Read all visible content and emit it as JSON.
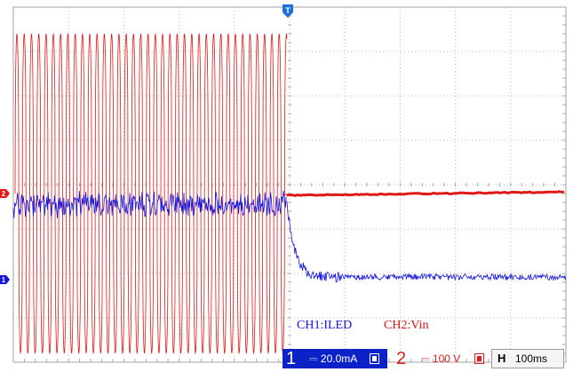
{
  "scope": {
    "trigger_marker": "T",
    "ch1_marker": "1",
    "ch2_marker": "2"
  },
  "labels": {
    "ch1": "CH1:ILED",
    "ch2": "CH2:Vin"
  },
  "status_bar": {
    "ch1": {
      "number": "1",
      "coupling": "⎓",
      "scale": "20.0mA"
    },
    "ch2": {
      "number": "2",
      "coupling": "⎓",
      "scale": "100 V"
    },
    "timebase": {
      "letter": "H",
      "scale": "100ms"
    }
  },
  "colors": {
    "ch1": "#1414e0",
    "ch2": "#e01818",
    "grid": "#b8b8b8",
    "trigger": "#1e6fd9"
  }
}
